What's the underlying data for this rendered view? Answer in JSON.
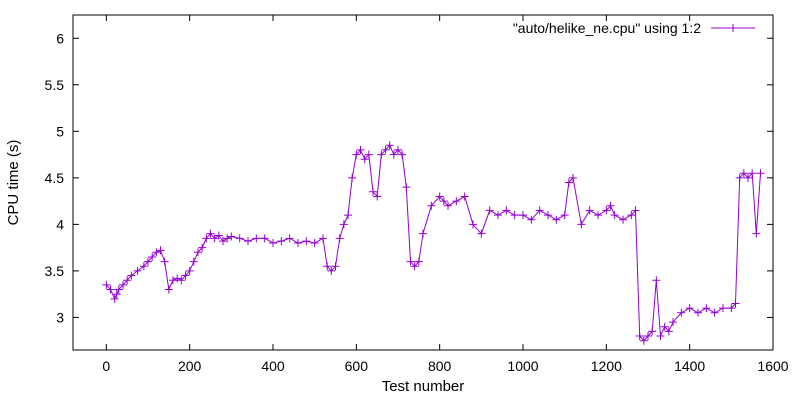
{
  "chart_data": {
    "type": "line",
    "xlabel": "Test number",
    "ylabel": "CPU time (s)",
    "xlim": [
      -80,
      1600
    ],
    "ylim": [
      2.65,
      6.25
    ],
    "xticks": [
      0,
      200,
      400,
      600,
      800,
      1000,
      1200,
      1400,
      1600
    ],
    "yticks": [
      3,
      3.5,
      4,
      4.5,
      5,
      5.5,
      6
    ],
    "legend_position": "top-right",
    "grid": false,
    "series": [
      {
        "name": "\"auto/helike_ne.cpu\" using 1:2",
        "color": "#9400d3",
        "marker": "plus",
        "x": [
          0,
          10,
          20,
          25,
          30,
          40,
          50,
          60,
          75,
          90,
          100,
          110,
          120,
          130,
          140,
          150,
          160,
          170,
          180,
          190,
          200,
          210,
          220,
          230,
          240,
          250,
          260,
          270,
          280,
          290,
          300,
          320,
          340,
          360,
          380,
          400,
          420,
          440,
          460,
          480,
          500,
          520,
          530,
          540,
          550,
          560,
          570,
          580,
          590,
          600,
          610,
          620,
          630,
          640,
          650,
          660,
          670,
          680,
          690,
          700,
          710,
          720,
          730,
          740,
          750,
          760,
          780,
          800,
          810,
          820,
          840,
          860,
          880,
          900,
          920,
          940,
          960,
          980,
          1000,
          1020,
          1040,
          1060,
          1080,
          1100,
          1110,
          1120,
          1140,
          1160,
          1180,
          1200,
          1210,
          1220,
          1240,
          1260,
          1270,
          1280,
          1290,
          1300,
          1310,
          1320,
          1330,
          1340,
          1350,
          1360,
          1380,
          1400,
          1420,
          1440,
          1460,
          1480,
          1500,
          1510,
          1520,
          1530,
          1540,
          1550,
          1560,
          1570
        ],
        "y": [
          3.35,
          3.3,
          3.2,
          3.25,
          3.3,
          3.35,
          3.4,
          3.45,
          3.5,
          3.55,
          3.6,
          3.65,
          3.7,
          3.72,
          3.6,
          3.3,
          3.4,
          3.42,
          3.4,
          3.45,
          3.5,
          3.6,
          3.7,
          3.75,
          3.85,
          3.9,
          3.85,
          3.88,
          3.82,
          3.85,
          3.87,
          3.85,
          3.82,
          3.85,
          3.85,
          3.8,
          3.82,
          3.85,
          3.8,
          3.82,
          3.8,
          3.85,
          3.55,
          3.5,
          3.55,
          3.85,
          4.0,
          4.1,
          4.5,
          4.75,
          4.8,
          4.7,
          4.75,
          4.35,
          4.3,
          4.75,
          4.8,
          4.85,
          4.75,
          4.8,
          4.75,
          4.4,
          3.6,
          3.55,
          3.6,
          3.9,
          4.2,
          4.3,
          4.25,
          4.2,
          4.25,
          4.3,
          4.0,
          3.9,
          4.15,
          4.1,
          4.15,
          4.1,
          4.1,
          4.05,
          4.15,
          4.1,
          4.05,
          4.1,
          4.45,
          4.5,
          4.0,
          4.15,
          4.1,
          4.15,
          4.2,
          4.1,
          4.05,
          4.1,
          4.15,
          2.8,
          2.75,
          2.8,
          2.85,
          3.4,
          2.8,
          2.9,
          2.85,
          2.95,
          3.05,
          3.1,
          3.05,
          3.1,
          3.05,
          3.1,
          3.1,
          3.15,
          4.5,
          4.55,
          4.5,
          4.55,
          3.9,
          4.55
        ]
      }
    ],
    "annotations": []
  }
}
